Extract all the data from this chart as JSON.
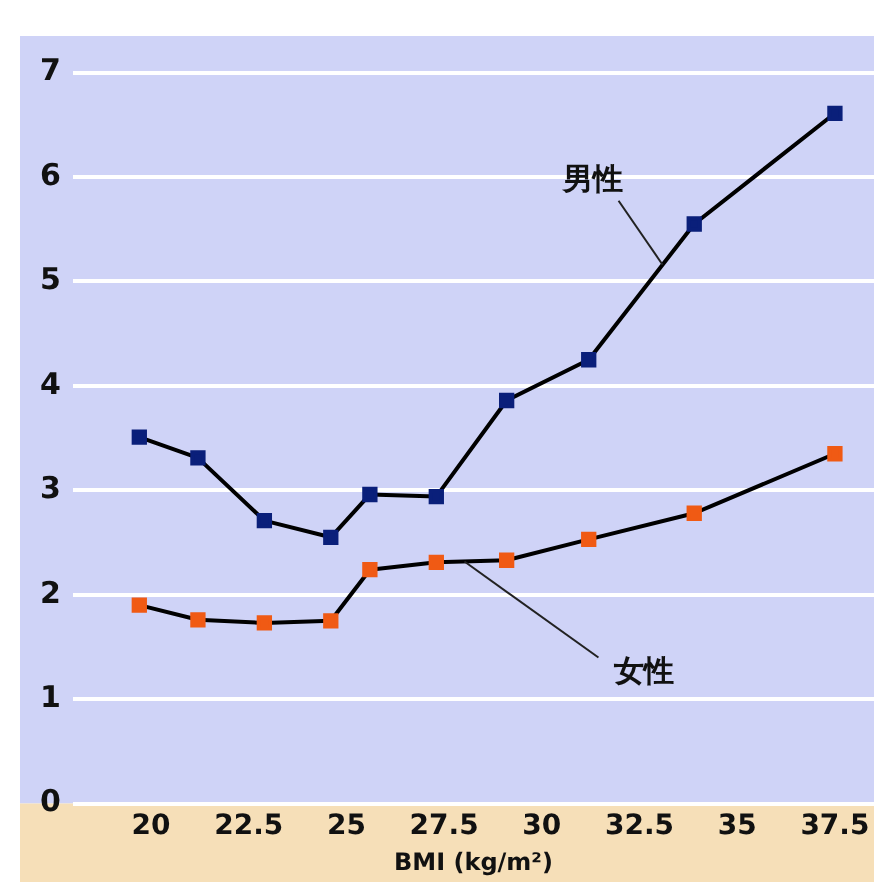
{
  "chart_data": {
    "type": "line",
    "xlabel": "BMI (kg/m²)",
    "x": [
      19.7,
      21.2,
      22.9,
      24.6,
      25.6,
      27.3,
      29.1,
      31.2,
      33.9,
      37.5
    ],
    "series": [
      {
        "name": "男性",
        "color": "#0a1f7a",
        "values": [
          3.51,
          3.31,
          2.71,
          2.55,
          2.96,
          2.94,
          3.86,
          4.25,
          5.55,
          6.61
        ]
      },
      {
        "name": "女性",
        "color": "#f05a14",
        "values": [
          1.9,
          1.76,
          1.73,
          1.75,
          2.24,
          2.31,
          2.33,
          2.53,
          2.78,
          3.35
        ]
      }
    ],
    "xlim": [
      18,
      38.5
    ],
    "xticks": [
      20,
      22.5,
      25,
      27.5,
      30,
      32.5,
      35,
      37.5
    ],
    "ylim": [
      0,
      7.35
    ],
    "yticks": [
      0,
      1,
      2,
      3,
      4,
      5,
      6,
      7
    ],
    "grid": "y",
    "legend": false,
    "marker": "square",
    "line_style": "solid"
  }
}
